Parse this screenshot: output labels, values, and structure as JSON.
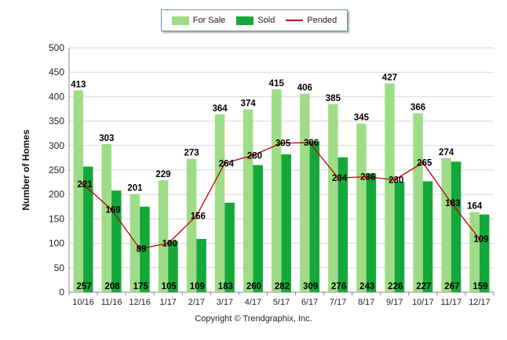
{
  "legend": {
    "for_sale": "For Sale",
    "sold": "Sold",
    "pended": "Pended"
  },
  "copyright": "Copyright © Trendgraphix, Inc.",
  "colors": {
    "for_sale": "#9fdc87",
    "sold": "#14a83a",
    "pended": "#c00000",
    "grid": "#d9d9d9"
  },
  "chart_data": {
    "type": "bar",
    "title": "",
    "xlabel": "",
    "ylabel": "Number of Homes",
    "ylim": [
      0,
      500
    ],
    "yticks": [
      0,
      50,
      100,
      150,
      200,
      250,
      300,
      350,
      400,
      450,
      500
    ],
    "grid": true,
    "legend_position": "top",
    "categories": [
      "10/16",
      "11/16",
      "12/16",
      "1/17",
      "2/17",
      "3/17",
      "4/17",
      "5/17",
      "6/17",
      "7/17",
      "8/17",
      "9/17",
      "10/17",
      "11/17",
      "12/17"
    ],
    "series": [
      {
        "name": "For Sale",
        "type": "bar",
        "values": [
          413,
          303,
          201,
          229,
          273,
          364,
          374,
          415,
          406,
          385,
          345,
          427,
          366,
          274,
          164
        ]
      },
      {
        "name": "Sold",
        "type": "bar",
        "values": [
          257,
          208,
          175,
          105,
          109,
          183,
          260,
          282,
          309,
          276,
          243,
          226,
          227,
          267,
          159
        ]
      },
      {
        "name": "Pended",
        "type": "line",
        "values": [
          221,
          169,
          89,
          100,
          156,
          264,
          280,
          305,
          306,
          234,
          236,
          230,
          265,
          183,
          109
        ]
      }
    ]
  }
}
